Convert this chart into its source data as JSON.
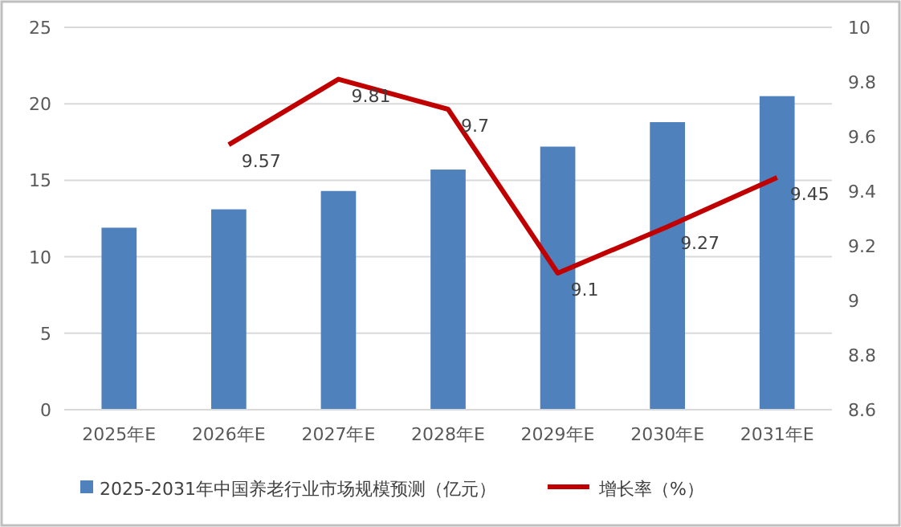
{
  "chart_data": {
    "type": "bar",
    "categories": [
      "2025年E",
      "2026年E",
      "2027年E",
      "2028年E",
      "2029年E",
      "2030年E",
      "2031年E"
    ],
    "series": [
      {
        "name": "2025-2031年中国养老行业市场规模预测（亿元）",
        "color": "#4f81bd",
        "values": [
          11.9,
          13.1,
          14.3,
          15.7,
          17.2,
          18.8,
          20.5
        ]
      },
      {
        "name": "增长率（%）",
        "type": "line",
        "axis": "y2",
        "color": "#c00000",
        "values": [
          null,
          9.57,
          9.81,
          9.7,
          9.1,
          9.27,
          9.45
        ],
        "value_labels": [
          null,
          "9.57",
          "9.81",
          "9.7",
          "9.1",
          "9.27",
          "9.45"
        ]
      }
    ],
    "ylim": [
      0,
      25
    ],
    "yticks": [
      0,
      5,
      10,
      15,
      20,
      25
    ],
    "y2lim": [
      8.6,
      10
    ],
    "y2ticks": [
      {
        "value": 8.6,
        "label": "8.6"
      },
      {
        "value": 8.8,
        "label": "8.8"
      },
      {
        "value": 9,
        "label": "9"
      },
      {
        "value": 9.2,
        "label": "9.2"
      },
      {
        "value": 9.4,
        "label": "9.4"
      },
      {
        "value": 9.6,
        "label": "9.6"
      },
      {
        "value": 9.8,
        "label": "9.8"
      },
      {
        "value": 10,
        "label": "10"
      }
    ],
    "grid": "y",
    "legend": "bottom"
  }
}
